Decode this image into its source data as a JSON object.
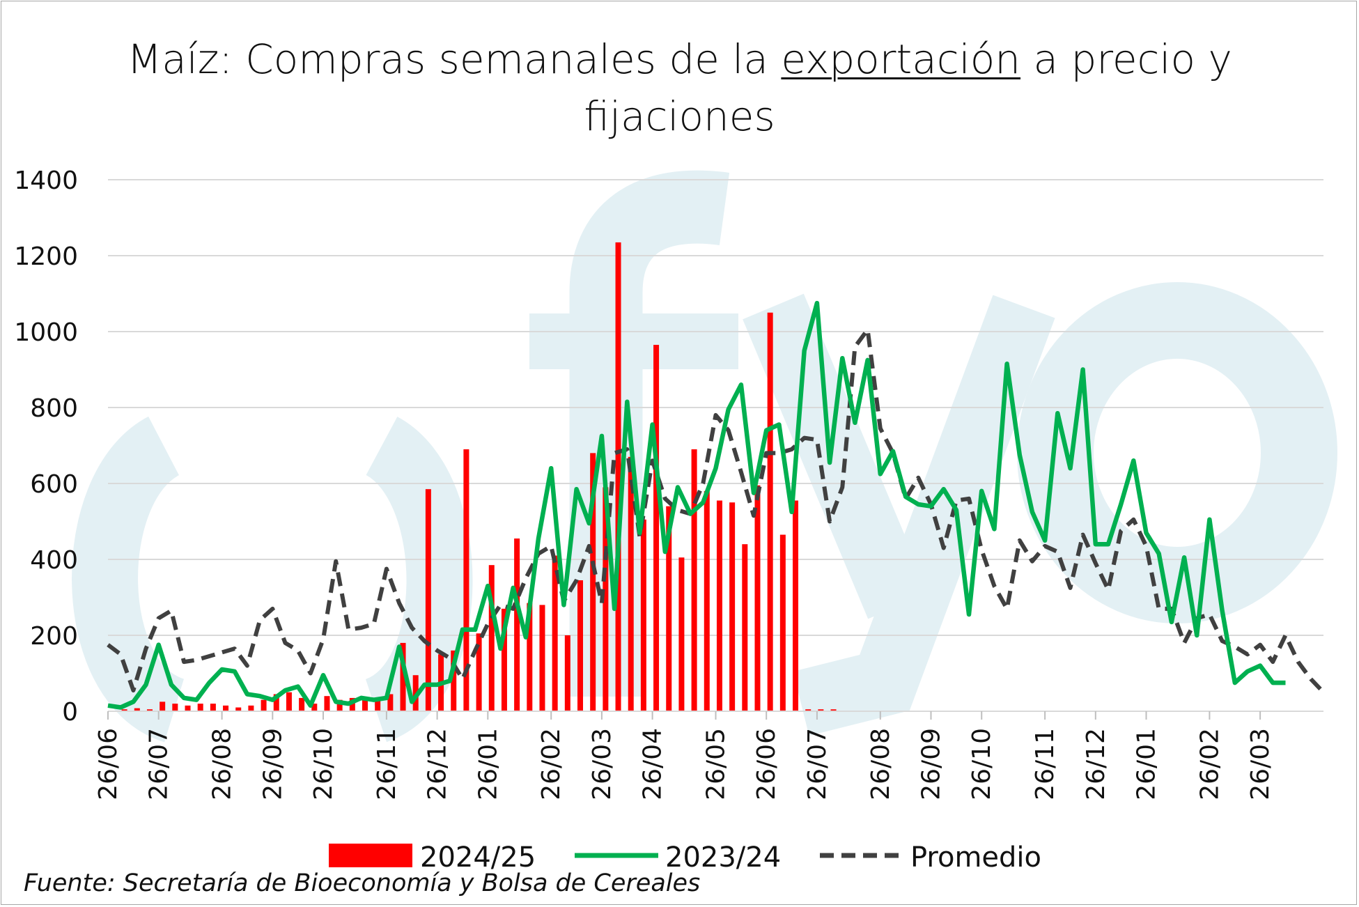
{
  "title": {
    "before": "Maíz: Compras semanales de la ",
    "underlined": "exportación",
    "after_line1": " a precio y",
    "line2": "fijaciones"
  },
  "source": "Fuente: Secretaría de Bioeconomía y Bolsa de Cereales",
  "colors": {
    "bars": "#ff0000",
    "line2324": "#00b050",
    "promedio": "#404040",
    "watermark": "#e3f0f4",
    "grid": "#d9d9d9"
  },
  "chart_data": {
    "type": "bar",
    "ylim": [
      0,
      1400
    ],
    "yticks": [
      "0",
      "200",
      "400",
      "600",
      "800",
      "1000",
      "1200",
      "1400"
    ],
    "xtick_labels": [
      "26/06",
      "26/07",
      "26/08",
      "26/09",
      "26/10",
      "26/11",
      "26/12",
      "26/01",
      "26/02",
      "26/03",
      "26/04",
      "26/05",
      "26/06",
      "26/07",
      "26/08",
      "26/09",
      "26/10",
      "26/11",
      "26/12",
      "26/01",
      "26/02",
      "26/03"
    ],
    "legend": [
      "2024/25",
      "2023/24",
      "Promedio"
    ],
    "legend_position": "bottom",
    "series": [
      {
        "name": "2024/25",
        "type": "bar",
        "values": [
          0,
          5,
          8,
          5,
          25,
          20,
          15,
          20,
          20,
          15,
          10,
          15,
          30,
          45,
          50,
          35,
          20,
          40,
          30,
          35,
          30,
          35,
          45,
          180,
          95,
          585,
          150,
          160,
          690,
          205,
          385,
          270,
          455,
          285,
          280,
          410,
          200,
          345,
          680,
          590,
          1235,
          670,
          505,
          965,
          540,
          405,
          690,
          580,
          555,
          550,
          440,
          595,
          1050,
          465,
          555,
          5,
          5,
          5
        ]
      },
      {
        "name": "2023/24",
        "type": "line",
        "values": [
          15,
          10,
          25,
          70,
          175,
          70,
          35,
          30,
          75,
          110,
          105,
          45,
          40,
          30,
          55,
          65,
          15,
          95,
          25,
          20,
          35,
          30,
          35,
          170,
          25,
          70,
          70,
          80,
          215,
          215,
          330,
          165,
          325,
          195,
          455,
          640,
          280,
          585,
          495,
          725,
          270,
          815,
          470,
          755,
          420,
          590,
          520,
          550,
          640,
          795,
          860,
          575,
          740,
          755,
          525,
          950,
          1075,
          655,
          930,
          760,
          925,
          625,
          685,
          565,
          545,
          540,
          585,
          530,
          255,
          580,
          480,
          915,
          675,
          525,
          450,
          785,
          640,
          900,
          440,
          440,
          545,
          660,
          470,
          415,
          235,
          405,
          200,
          505,
          265,
          75,
          105,
          120,
          75,
          75
        ]
      },
      {
        "name": "Promedio",
        "type": "line",
        "values": [
          175,
          150,
          55,
          165,
          245,
          265,
          130,
          135,
          145,
          155,
          165,
          120,
          240,
          270,
          180,
          160,
          100,
          190,
          395,
          215,
          220,
          230,
          375,
          285,
          220,
          185,
          160,
          140,
          85,
          160,
          230,
          280,
          270,
          350,
          415,
          435,
          290,
          345,
          435,
          285,
          680,
          690,
          460,
          660,
          560,
          530,
          520,
          600,
          780,
          740,
          630,
          515,
          680,
          680,
          690,
          720,
          715,
          500,
          590,
          960,
          1005,
          745,
          680,
          560,
          615,
          545,
          430,
          555,
          560,
          425,
          330,
          270,
          450,
          395,
          435,
          420,
          325,
          465,
          390,
          320,
          475,
          505,
          435,
          270,
          270,
          180,
          245,
          255,
          185,
          170,
          150,
          175,
          130,
          200,
          130,
          85,
          50
        ]
      }
    ]
  }
}
